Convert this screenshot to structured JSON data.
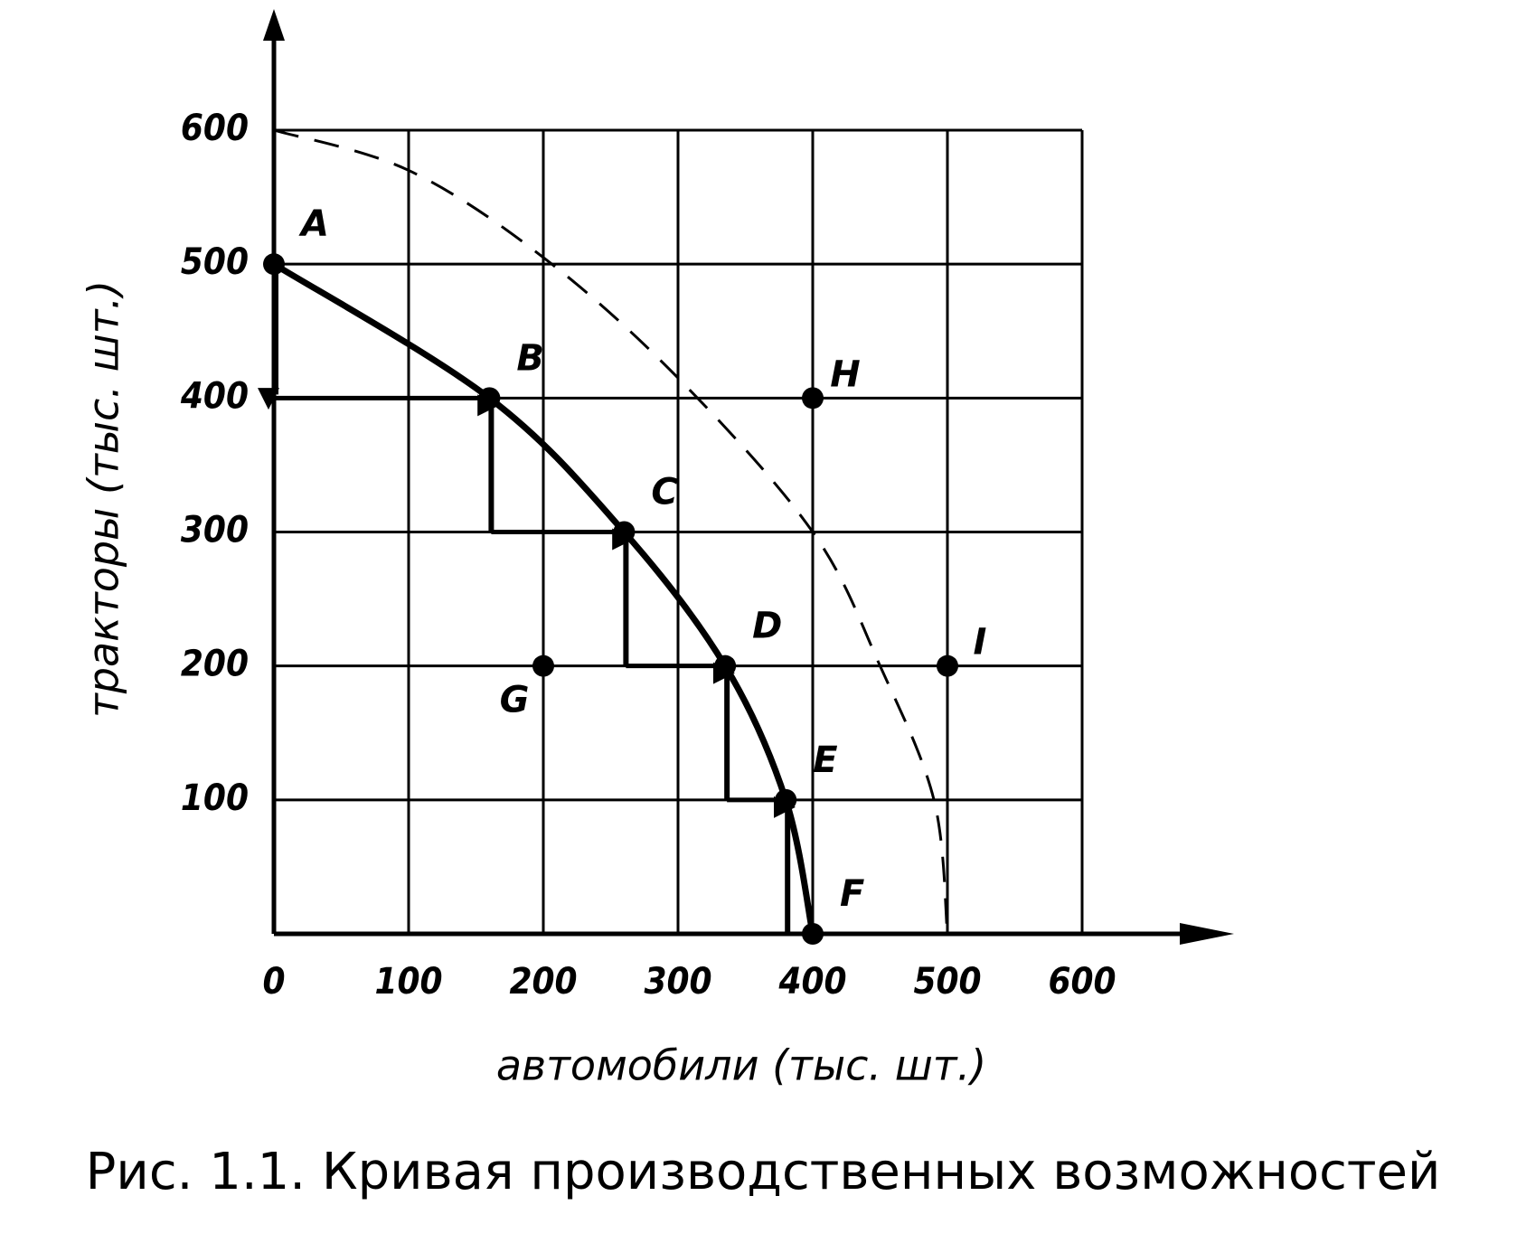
{
  "chart_data": {
    "type": "line",
    "title": "Рис. 1.1.   Кривая производственных возможностей",
    "x_label": "автомобили  (тыс. шт.)",
    "y_label": "тракторы  (тыс. шт.)",
    "xlim": [
      0,
      600
    ],
    "ylim": [
      0,
      600
    ],
    "xticks": [
      0,
      100,
      200,
      300,
      400,
      500,
      600
    ],
    "yticks": [
      100,
      200,
      300,
      400,
      500,
      600
    ],
    "grid": true,
    "series": [
      {
        "color": "#000000",
        "style": "solid",
        "x": [
          0,
          160,
          260,
          335,
          380,
          400
        ],
        "values": [
          500,
          400,
          300,
          200,
          100,
          0
        ],
        "point_labels": [
          "A",
          "B",
          "C",
          "D",
          "E",
          "F"
        ]
      },
      {
        "color": "#000000",
        "style": "dashed",
        "x": [
          0,
          100,
          200,
          300,
          400,
          450,
          490,
          500
        ],
        "values": [
          600,
          570,
          505,
          415,
          300,
          200,
          100,
          0
        ]
      }
    ],
    "points": {
      "labels": [
        "G",
        "H",
        "I"
      ],
      "x": [
        200,
        400,
        500
      ],
      "values": [
        200,
        400,
        200
      ]
    }
  }
}
